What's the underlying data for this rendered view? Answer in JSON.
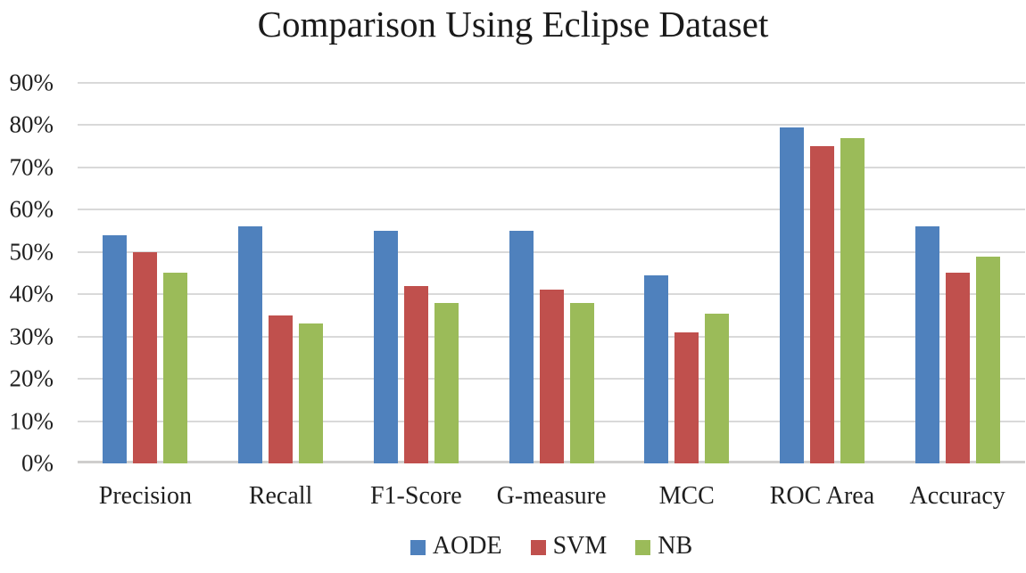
{
  "chart_data": {
    "type": "bar",
    "title": "Comparison Using Eclipse Dataset",
    "categories": [
      "Precision",
      "Recall",
      "F1-Score",
      "G-measure",
      "MCC",
      "ROC Area",
      "Accuracy"
    ],
    "series": [
      {
        "name": "AODE",
        "color": "#4F81BD",
        "values": [
          54,
          56,
          55,
          55,
          44.5,
          79.5,
          56
        ]
      },
      {
        "name": "SVM",
        "color": "#C0504D",
        "values": [
          50,
          35,
          42,
          41,
          31,
          75,
          45
        ]
      },
      {
        "name": "NB",
        "color": "#9BBB59",
        "values": [
          45,
          33,
          38,
          38,
          35.5,
          77,
          49
        ]
      }
    ],
    "xlabel": "",
    "ylabel": "",
    "ylim": [
      0,
      90
    ],
    "ytick_step": 10,
    "ytick_labels": [
      "0%",
      "10%",
      "20%",
      "30%",
      "40%",
      "50%",
      "60%",
      "70%",
      "80%",
      "90%"
    ],
    "grid": true,
    "legend_position": "bottom",
    "colors": {
      "gridline": "#D9D9D9",
      "baseline": "#CFCECD",
      "text": "#1F1F1F"
    }
  }
}
